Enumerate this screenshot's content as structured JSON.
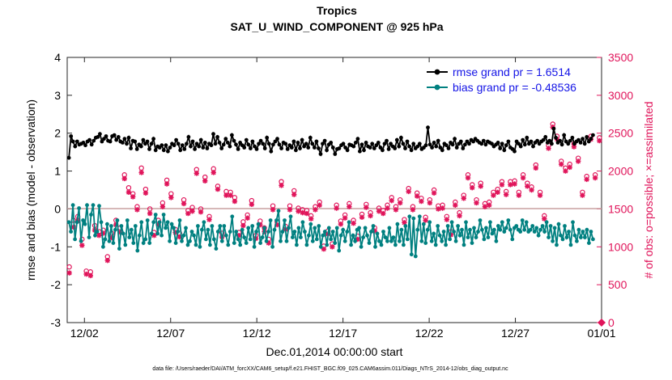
{
  "chart_data": {
    "type": "line",
    "title": "Tropics",
    "subtitle": "SAT_U_WIND_COMPONENT @ 925 hPa",
    "xlabel": "Dec.01,2014 00:00:00 start",
    "ylabel_left": "rmse and bias (model - observation)",
    "ylabel_right": "# of obs: o=possible; ×=assimilated",
    "ylim_left": [
      -3,
      4
    ],
    "ylim_right": [
      0,
      3500
    ],
    "xlim": [
      0,
      31
    ],
    "x_ticks": [
      {
        "value": 1,
        "label": "12/02"
      },
      {
        "value": 6,
        "label": "12/07"
      },
      {
        "value": 11,
        "label": "12/12"
      },
      {
        "value": 16,
        "label": "12/17"
      },
      {
        "value": 21,
        "label": "12/22"
      },
      {
        "value": 26,
        "label": "12/27"
      },
      {
        "value": 31,
        "label": "01/01"
      }
    ],
    "y_ticks_left": [
      "-3",
      "-2",
      "-1",
      "0",
      "1",
      "2",
      "3",
      "4"
    ],
    "y_ticks_right": [
      "0",
      "500",
      "1000",
      "1500",
      "2000",
      "2500",
      "3000",
      "3500"
    ],
    "legend": [
      "rmse grand pr = 1.6514",
      "bias grand pr = -0.48536"
    ],
    "footnote": "data file: /Users/raeder/DAI/ATM_forcXX/CAM6_setup/f.e21.FHIST_BGC.f09_025.CAM6assim.011/Diags_NTrS_2014-12/obs_diag_output.nc",
    "colors": {
      "rmse": "#000000",
      "bias": "#008080",
      "obs": "#e0145a",
      "legend_text": "#1414e6"
    },
    "series": [
      {
        "name": "rmse",
        "values": [
          1.35,
          1.92,
          1.78,
          1.65,
          1.78,
          1.7,
          1.72,
          1.75,
          1.68,
          1.78,
          1.82,
          1.7,
          1.8,
          1.88,
          1.9,
          1.98,
          1.78,
          1.85,
          1.92,
          1.8,
          1.78,
          1.92,
          1.95,
          1.82,
          1.9,
          1.78,
          1.75,
          1.85,
          1.72,
          1.88,
          1.6,
          1.8,
          1.78,
          1.58,
          1.7,
          1.65,
          1.82,
          1.72,
          1.78,
          1.58,
          1.72,
          1.85,
          1.55,
          1.65,
          1.62,
          1.68,
          1.55,
          1.68,
          1.52,
          1.62,
          1.72,
          1.68,
          1.82,
          1.72,
          1.55,
          1.68,
          1.58,
          1.72,
          1.9,
          1.65,
          1.78,
          1.58,
          1.72,
          1.65,
          1.82,
          1.62,
          1.75,
          1.6,
          1.72,
          1.68,
          1.98,
          1.72,
          1.9,
          1.75,
          1.6,
          1.7,
          1.85,
          1.75,
          1.65,
          1.95,
          1.8,
          1.7,
          1.58,
          1.75,
          1.68,
          1.62,
          1.82,
          1.7,
          1.6,
          1.78,
          1.65,
          1.58,
          1.72,
          1.8,
          1.72,
          1.6,
          1.88,
          1.72,
          1.52,
          1.7,
          1.78,
          1.85,
          1.7,
          1.6,
          1.75,
          1.72,
          1.58,
          1.68,
          1.62,
          1.78,
          1.55,
          1.75,
          1.6,
          1.82,
          1.65,
          1.72,
          1.62,
          1.88,
          1.72,
          1.62,
          1.78,
          1.6,
          1.45,
          1.72,
          1.8,
          1.55,
          1.7,
          1.75,
          1.62,
          1.45,
          1.58,
          1.6,
          1.68,
          1.72,
          1.62,
          1.55,
          1.7,
          1.68,
          1.65,
          1.75,
          1.85,
          1.52,
          1.7,
          1.55,
          1.75,
          1.65,
          1.62,
          1.72,
          1.6,
          1.68,
          1.75,
          1.62,
          1.55,
          1.72,
          1.8,
          1.58,
          1.72,
          1.65,
          1.6,
          1.82,
          1.65,
          1.88,
          1.72,
          1.6,
          1.78,
          1.65,
          1.55,
          1.72,
          1.6,
          1.65,
          1.72,
          1.58,
          1.62,
          1.68,
          2.15,
          1.7,
          1.62,
          1.75,
          1.65,
          1.8,
          1.62,
          1.55,
          1.72,
          1.68,
          1.6,
          1.75,
          1.7,
          1.85,
          1.62,
          1.72,
          1.78,
          1.6,
          1.7,
          1.78,
          1.72,
          1.82,
          1.78,
          1.85,
          1.8,
          1.75,
          1.72,
          1.8,
          1.7,
          1.78,
          1.75,
          1.72,
          1.65,
          1.7,
          1.75,
          1.6,
          1.72,
          1.55,
          1.68,
          1.78,
          1.62,
          1.58,
          1.52,
          1.78,
          1.72,
          1.65,
          1.82,
          1.7,
          1.88,
          1.72,
          1.78,
          1.65,
          1.75,
          1.8,
          1.72,
          1.78,
          1.82,
          1.9,
          1.75,
          1.8,
          1.72,
          2.12,
          1.88,
          1.75,
          1.8,
          1.7,
          1.95,
          1.78,
          1.72,
          1.8,
          1.88,
          1.72,
          1.78,
          1.82,
          1.75,
          1.85,
          1.72,
          1.9,
          1.78,
          1.85,
          1.95
        ]
      },
      {
        "name": "bias",
        "values": [
          -0.35,
          -0.6,
          0.1,
          -0.8,
          -0.35,
          0.02,
          -0.85,
          -0.3,
          -0.4,
          0.1,
          -0.75,
          -0.15,
          0.1,
          -0.7,
          -0.6,
          0.08,
          -0.35,
          -1.0,
          -0.8,
          -0.4,
          -0.85,
          -0.45,
          -0.9,
          -0.55,
          -0.3,
          -1.05,
          -0.45,
          -0.65,
          -0.95,
          -0.3,
          -0.75,
          -0.55,
          -0.9,
          -0.45,
          -1.1,
          -0.7,
          -0.35,
          -0.9,
          -0.8,
          -0.3,
          -0.9,
          -0.65,
          -0.35,
          -0.15,
          -0.65,
          -0.35,
          -0.7,
          -0.15,
          -0.5,
          -0.35,
          -0.85,
          -0.4,
          -0.5,
          -0.9,
          -0.6,
          -0.3,
          -0.85,
          -0.7,
          -0.5,
          -0.95,
          -0.85,
          -0.6,
          -0.7,
          -0.95,
          -0.45,
          -1.0,
          -0.55,
          -0.35,
          -0.8,
          -0.55,
          -0.95,
          -0.45,
          -0.8,
          -1.05,
          -0.6,
          -0.45,
          -0.85,
          -0.45,
          -0.7,
          -0.95,
          -0.6,
          -0.2,
          -0.9,
          -0.6,
          -0.8,
          -0.95,
          -0.55,
          -0.75,
          -0.9,
          -0.5,
          -0.8,
          -0.45,
          -1.0,
          -0.6,
          -0.4,
          -0.9,
          -0.75,
          -0.5,
          -0.85,
          -0.6,
          -0.3,
          -1.0,
          -0.55,
          -0.3,
          -0.05,
          -0.85,
          -0.6,
          -0.3,
          -0.85,
          -0.5,
          -0.2,
          -0.75,
          -0.6,
          -0.95,
          -0.5,
          -0.75,
          -0.35,
          -0.6,
          -0.95,
          -0.7,
          -0.4,
          -0.85,
          -0.5,
          -0.8,
          -0.45,
          -1.0,
          -0.7,
          -0.6,
          -0.95,
          -0.5,
          -0.8,
          -0.6,
          -0.9,
          -0.5,
          -1.1,
          -0.7,
          -0.55,
          -0.85,
          -0.6,
          -0.35,
          -0.95,
          -0.7,
          -0.85,
          -0.55,
          -0.5,
          -1.0,
          -0.75,
          -0.5,
          -0.7,
          -0.9,
          -0.6,
          -0.45,
          -1.0,
          -0.65,
          -0.85,
          -0.95,
          -0.6,
          -0.75,
          -0.85,
          -0.5,
          -0.85,
          -0.75,
          -0.95,
          -0.4,
          -0.85,
          -0.55,
          -0.95,
          -0.45,
          -0.8,
          -0.2,
          -1.2,
          -0.25,
          -1.25,
          -0.55,
          -0.2,
          -0.85,
          -0.4,
          -0.9,
          -0.55,
          -0.35,
          -0.85,
          -0.65,
          -0.95,
          -0.45,
          -0.7,
          -0.85,
          -0.6,
          -0.95,
          -0.45,
          -0.8,
          -0.35,
          -0.6,
          -0.85,
          -0.45,
          -0.7,
          -0.55,
          -0.95,
          -0.35,
          -0.75,
          -0.55,
          -0.9,
          -0.5,
          -0.75,
          -0.6,
          -0.3,
          -0.55,
          -0.8,
          -0.5,
          -0.75,
          -0.35,
          -0.65,
          -0.55,
          -0.85,
          -0.45,
          -0.55,
          -0.35,
          -0.6,
          -0.5,
          -0.3,
          -0.55,
          -0.8,
          -0.5,
          -0.45,
          -0.55,
          -0.6,
          -0.3,
          -0.55,
          -0.35,
          -0.6,
          -0.55,
          -0.45,
          -0.6,
          -0.5,
          -0.7,
          -0.55,
          -0.45,
          -0.6,
          -0.35,
          -0.75,
          -0.45,
          -0.85,
          -0.5,
          -0.95,
          -0.4,
          -0.7,
          -0.8,
          -0.45,
          -0.75,
          -0.6,
          -0.95,
          -0.35,
          -0.7,
          -0.85,
          -0.55,
          -0.75,
          -0.6,
          -0.75,
          -0.55,
          -0.9,
          -0.6,
          -0.8
        ]
      },
      {
        "name": "obs_possible",
        "values": [
          735,
          1350,
          1400,
          1100,
          680,
          670,
          1280,
          1200,
          1220,
          870,
          1180,
          1350,
          1250,
          1950,
          1780,
          1700,
          1530,
          2040,
          1760,
          1500,
          1190,
          1350,
          1580,
          1880,
          1700,
          1230,
          1180,
          1620,
          1480,
          1520,
          2020,
          1500,
          1920,
          1400,
          2030,
          1800,
          1180,
          1730,
          1720,
          1650,
          1190,
          1330,
          1420,
          1610,
          1150,
          1340,
          1250,
          1100,
          1540,
          1330,
          1860,
          1270,
          1540,
          1740,
          1510,
          1490,
          1480,
          1410,
          1530,
          1590,
          1010,
          1210,
          1040,
          1550,
          1340,
          1420,
          1570,
          1350,
          1140,
          1430,
          1560,
          1450,
          1250,
          1510,
          1480,
          1550,
          1650,
          1530,
          1620,
          1360,
          1770,
          1530,
          1710,
          1640,
          1390,
          1620,
          1750,
          1540,
          1550,
          1400,
          1200,
          1590,
          1450,
          1680,
          1950,
          1820,
          1620,
          1840,
          1570,
          1590,
          1720,
          1760,
          1860,
          1730,
          1860,
          1870,
          1720,
          1950,
          1840,
          1790,
          2080,
          1720,
          1410,
          2340,
          2620,
          2460,
          2130,
          2040,
          2090,
          2360,
          2170,
          1720,
          1930,
          2460,
          1950,
          2440
        ]
      },
      {
        "name": "obs_assimilated",
        "values": [
          655,
          1260,
          1340,
          1020,
          640,
          620,
          1220,
          1150,
          1180,
          820,
          1120,
          1290,
          1190,
          1900,
          1720,
          1660,
          1490,
          1980,
          1710,
          1440,
          1150,
          1290,
          1530,
          1830,
          1650,
          1190,
          1130,
          1570,
          1440,
          1470,
          1970,
          1460,
          1870,
          1360,
          1980,
          1760,
          1130,
          1680,
          1680,
          1600,
          1150,
          1280,
          1380,
          1560,
          1110,
          1290,
          1200,
          1050,
          1490,
          1290,
          1810,
          1230,
          1490,
          1690,
          1470,
          1450,
          1440,
          1370,
          1490,
          1550,
          970,
          1170,
          1000,
          1510,
          1300,
          1380,
          1530,
          1310,
          1100,
          1390,
          1520,
          1410,
          1210,
          1470,
          1440,
          1510,
          1610,
          1490,
          1580,
          1320,
          1730,
          1490,
          1670,
          1600,
          1350,
          1580,
          1710,
          1500,
          1510,
          1360,
          1160,
          1550,
          1410,
          1640,
          1910,
          1780,
          1580,
          1800,
          1530,
          1550,
          1680,
          1720,
          1820,
          1690,
          1820,
          1830,
          1680,
          1910,
          1800,
          1750,
          2040,
          1680,
          1370,
          2300,
          2580,
          2420,
          2090,
          2000,
          2050,
          2320,
          2130,
          1680,
          1890,
          2420,
          1910,
          2400
        ]
      }
    ]
  }
}
